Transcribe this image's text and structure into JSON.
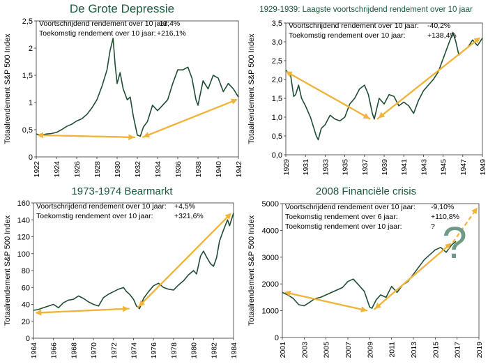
{
  "colors": {
    "line": "#1f4d32",
    "arrow": "#f0b43a",
    "title": "#1a5a3a",
    "question": "#6f9a86",
    "axis": "#555555",
    "text": "#000000"
  },
  "chart_data": [
    {
      "type": "line",
      "title": "De Grote Depressie",
      "ylabel": "Totaalrendement S&P 500 Index",
      "ylim": [
        0,
        2.5
      ],
      "yticks": [
        "0",
        "0,5",
        "1",
        "1,5",
        "2",
        "2,5"
      ],
      "xlim": [
        1922,
        1942
      ],
      "xticks": [
        "1922",
        "1924",
        "1926",
        "1928",
        "1930",
        "1932",
        "1934",
        "1936",
        "1938",
        "1940",
        "1942"
      ],
      "annotations": [
        {
          "label": "Voortschrijdend rendement over 10 jaar:",
          "value": "-13,4%"
        },
        {
          "label": "Toekomstig rendement over 10 jaar:",
          "value": "+216,1%"
        }
      ],
      "series": [
        {
          "values": [
            [
              1922,
              0.42
            ],
            [
              1922.5,
              0.4
            ],
            [
              1923,
              0.42
            ],
            [
              1923.5,
              0.43
            ],
            [
              1924,
              0.45
            ],
            [
              1924.5,
              0.5
            ],
            [
              1925,
              0.56
            ],
            [
              1925.5,
              0.6
            ],
            [
              1926,
              0.66
            ],
            [
              1926.5,
              0.7
            ],
            [
              1927,
              0.78
            ],
            [
              1927.5,
              0.9
            ],
            [
              1928,
              1.05
            ],
            [
              1928.5,
              1.3
            ],
            [
              1929,
              1.6
            ],
            [
              1929.3,
              1.95
            ],
            [
              1929.6,
              2.18
            ],
            [
              1929.8,
              1.7
            ],
            [
              1930,
              1.35
            ],
            [
              1930.3,
              1.55
            ],
            [
              1930.6,
              1.25
            ],
            [
              1931,
              1.05
            ],
            [
              1931.3,
              1.1
            ],
            [
              1931.6,
              0.75
            ],
            [
              1932,
              0.4
            ],
            [
              1932.3,
              0.38
            ],
            [
              1932.6,
              0.55
            ],
            [
              1933,
              0.65
            ],
            [
              1933.5,
              0.95
            ],
            [
              1934,
              0.85
            ],
            [
              1934.5,
              0.95
            ],
            [
              1935,
              1.05
            ],
            [
              1935.5,
              1.35
            ],
            [
              1936,
              1.6
            ],
            [
              1936.5,
              1.6
            ],
            [
              1937,
              1.65
            ],
            [
              1937.4,
              1.45
            ],
            [
              1937.8,
              1.05
            ],
            [
              1938,
              0.95
            ],
            [
              1938.5,
              1.4
            ],
            [
              1939,
              1.25
            ],
            [
              1939.5,
              1.5
            ],
            [
              1940,
              1.45
            ],
            [
              1940.5,
              1.2
            ],
            [
              1941,
              1.35
            ],
            [
              1941.5,
              1.25
            ],
            [
              1942,
              1.1
            ]
          ]
        }
      ],
      "arrows": [
        {
          "from": [
            1931.8,
            0.36
          ],
          "to": [
            1922.2,
            0.4
          ]
        },
        {
          "from": [
            1932.5,
            0.36
          ],
          "to": [
            1941.8,
            1.05
          ]
        }
      ]
    },
    {
      "type": "line",
      "title": "1929-1939: Laagste voortschrijdend rendement over 10 jaar",
      "ylabel": "Totaalrendement S&P 500 Index",
      "ylim": [
        0,
        3.5
      ],
      "yticks": [
        "0,0",
        "0,5",
        "1,0",
        "1,5",
        "2,0",
        "2,5",
        "3,0",
        "3,5"
      ],
      "xlim": [
        1929,
        1949
      ],
      "xticks": [
        "1929",
        "1931",
        "1933",
        "1935",
        "1937",
        "1939",
        "1941",
        "1943",
        "1945",
        "1947",
        "1949"
      ],
      "annotations": [
        {
          "label": "Voortschrijdend rendement over 10 jaar:",
          "value": "-40,2%"
        },
        {
          "label": "Toekomstig rendement over 10 jaar:",
          "value": "+138,4%"
        }
      ],
      "series": [
        {
          "values": [
            [
              1929,
              2.25
            ],
            [
              1929.5,
              2.1
            ],
            [
              1929.8,
              1.55
            ],
            [
              1930,
              1.6
            ],
            [
              1930.3,
              1.85
            ],
            [
              1930.6,
              1.5
            ],
            [
              1931,
              1.3
            ],
            [
              1931.5,
              1.0
            ],
            [
              1931.8,
              0.75
            ],
            [
              1932.1,
              0.5
            ],
            [
              1932.3,
              0.4
            ],
            [
              1932.6,
              0.7
            ],
            [
              1933,
              0.8
            ],
            [
              1933.5,
              1.05
            ],
            [
              1934,
              0.95
            ],
            [
              1934.5,
              0.9
            ],
            [
              1935,
              1.0
            ],
            [
              1935.5,
              1.35
            ],
            [
              1936,
              1.5
            ],
            [
              1936.5,
              1.75
            ],
            [
              1937,
              1.85
            ],
            [
              1937.4,
              1.6
            ],
            [
              1937.8,
              1.1
            ],
            [
              1938,
              0.95
            ],
            [
              1938.5,
              1.5
            ],
            [
              1939,
              1.35
            ],
            [
              1939.5,
              1.6
            ],
            [
              1940,
              1.55
            ],
            [
              1940.5,
              1.3
            ],
            [
              1941,
              1.4
            ],
            [
              1941.5,
              1.3
            ],
            [
              1942,
              1.1
            ],
            [
              1942.5,
              1.45
            ],
            [
              1943,
              1.7
            ],
            [
              1943.5,
              1.85
            ],
            [
              1944,
              2.0
            ],
            [
              1944.5,
              2.2
            ],
            [
              1945,
              2.55
            ],
            [
              1945.5,
              2.9
            ],
            [
              1946,
              3.25
            ],
            [
              1946.3,
              3.0
            ],
            [
              1946.6,
              2.65
            ],
            [
              1947,
              2.75
            ],
            [
              1947.5,
              2.85
            ],
            [
              1948,
              3.05
            ],
            [
              1948.5,
              2.9
            ],
            [
              1949,
              3.1
            ]
          ]
        }
      ],
      "arrows": [
        {
          "from": [
            1937.6,
            0.95
          ],
          "to": [
            1929.1,
            2.2
          ]
        },
        {
          "from": [
            1938.3,
            0.95
          ],
          "to": [
            1948.7,
            3.1
          ]
        }
      ]
    },
    {
      "type": "line",
      "title": "1973-1974 Bearmarkt",
      "ylabel": "Totaalrendement S&P 500 Index",
      "ylim": [
        0,
        160
      ],
      "yticks": [
        "0",
        "20",
        "40",
        "60",
        "80",
        "100",
        "120",
        "140",
        "160"
      ],
      "xlim": [
        1964,
        1984
      ],
      "xticks": [
        "1964",
        "1966",
        "1968",
        "1970",
        "1972",
        "1974",
        "1976",
        "1978",
        "1980",
        "1982",
        "1984"
      ],
      "annotations": [
        {
          "label": "Voortschrijdend rendement over 10 jaar:",
          "value": "+4,5%"
        },
        {
          "label": "Toekomstig rendement over 10 jaar:",
          "value": "+321,6%"
        }
      ],
      "series": [
        {
          "values": [
            [
              1964,
              33
            ],
            [
              1964.5,
              34
            ],
            [
              1965,
              36
            ],
            [
              1965.5,
              38
            ],
            [
              1966,
              40
            ],
            [
              1966.5,
              36
            ],
            [
              1967,
              42
            ],
            [
              1967.5,
              45
            ],
            [
              1968,
              46
            ],
            [
              1968.5,
              50
            ],
            [
              1969,
              47
            ],
            [
              1969.5,
              43
            ],
            [
              1970,
              40
            ],
            [
              1970.5,
              38
            ],
            [
              1971,
              48
            ],
            [
              1971.5,
              52
            ],
            [
              1972,
              55
            ],
            [
              1972.5,
              58
            ],
            [
              1973,
              60
            ],
            [
              1973.3,
              55
            ],
            [
              1973.6,
              52
            ],
            [
              1974,
              46
            ],
            [
              1974.3,
              38
            ],
            [
              1974.6,
              35
            ],
            [
              1975,
              47
            ],
            [
              1975.5,
              55
            ],
            [
              1976,
              62
            ],
            [
              1976.5,
              65
            ],
            [
              1977,
              60
            ],
            [
              1977.5,
              58
            ],
            [
              1978,
              57
            ],
            [
              1978.5,
              63
            ],
            [
              1979,
              68
            ],
            [
              1979.5,
              75
            ],
            [
              1980,
              80
            ],
            [
              1980.3,
              76
            ],
            [
              1980.7,
              97
            ],
            [
              1981,
              103
            ],
            [
              1981.3,
              96
            ],
            [
              1981.7,
              88
            ],
            [
              1982,
              85
            ],
            [
              1982.3,
              95
            ],
            [
              1982.6,
              115
            ],
            [
              1983,
              128
            ],
            [
              1983.4,
              140
            ],
            [
              1983.6,
              133
            ],
            [
              1984,
              148
            ]
          ]
        }
      ],
      "arrows": [
        {
          "from": [
            1973.6,
            35
          ],
          "to": [
            1964.3,
            30
          ]
        },
        {
          "from": [
            1974.4,
            36
          ],
          "to": [
            1983.7,
            147
          ]
        }
      ]
    },
    {
      "type": "line",
      "title": "2008 Financiële crisis",
      "ylabel": "Totaalrendement S&P 500 Index",
      "ylim": [
        0,
        5500
      ],
      "yticks": [
        "0",
        "1000",
        "2000",
        "3000",
        "4000",
        "5000"
      ],
      "xlim": [
        2001,
        2019
      ],
      "xticks": [
        "2001",
        "2003",
        "2005",
        "2007",
        "2009",
        "2011",
        "2013",
        "2015",
        "2017",
        "2019"
      ],
      "annotations": [
        {
          "label": "Voortschrijdend rendement over 10 jaar:",
          "value": "-9,10%"
        },
        {
          "label": "Toekomstig rendement over 6 jaar:",
          "value": "+110,8%"
        },
        {
          "label": "Toekomstig rendement over 10 jaar:",
          "value": "?"
        }
      ],
      "question_mark": "?",
      "series": [
        {
          "values": [
            [
              2001,
              1850
            ],
            [
              2001.5,
              1750
            ],
            [
              2002,
              1600
            ],
            [
              2002.5,
              1350
            ],
            [
              2003,
              1300
            ],
            [
              2003.5,
              1450
            ],
            [
              2004,
              1600
            ],
            [
              2004.5,
              1650
            ],
            [
              2005,
              1750
            ],
            [
              2005.5,
              1850
            ],
            [
              2006,
              1950
            ],
            [
              2006.5,
              2050
            ],
            [
              2007,
              2300
            ],
            [
              2007.5,
              2400
            ],
            [
              2008,
              2150
            ],
            [
              2008.5,
              1900
            ],
            [
              2009,
              1250
            ],
            [
              2009.2,
              1200
            ],
            [
              2009.6,
              1550
            ],
            [
              2010,
              1750
            ],
            [
              2010.5,
              1650
            ],
            [
              2011,
              2100
            ],
            [
              2011.5,
              1850
            ],
            [
              2012,
              2150
            ],
            [
              2012.5,
              2300
            ],
            [
              2013,
              2600
            ],
            [
              2013.5,
              2900
            ],
            [
              2014,
              3200
            ],
            [
              2014.5,
              3400
            ],
            [
              2015,
              3600
            ],
            [
              2015.5,
              3700
            ],
            [
              2016,
              3500
            ],
            [
              2016.5,
              3800
            ],
            [
              2016.9,
              3950
            ]
          ]
        }
      ],
      "arrows": [
        {
          "from": [
            2008.8,
            1100
          ],
          "to": [
            2001.3,
            1850
          ]
        },
        {
          "from": [
            2009.4,
            1150
          ],
          "to": [
            2016.4,
            3850
          ]
        }
      ],
      "dashed_arrow": {
        "from": [
          2016.6,
          3900
        ],
        "to": [
          2018.8,
          5300
        ]
      }
    }
  ]
}
